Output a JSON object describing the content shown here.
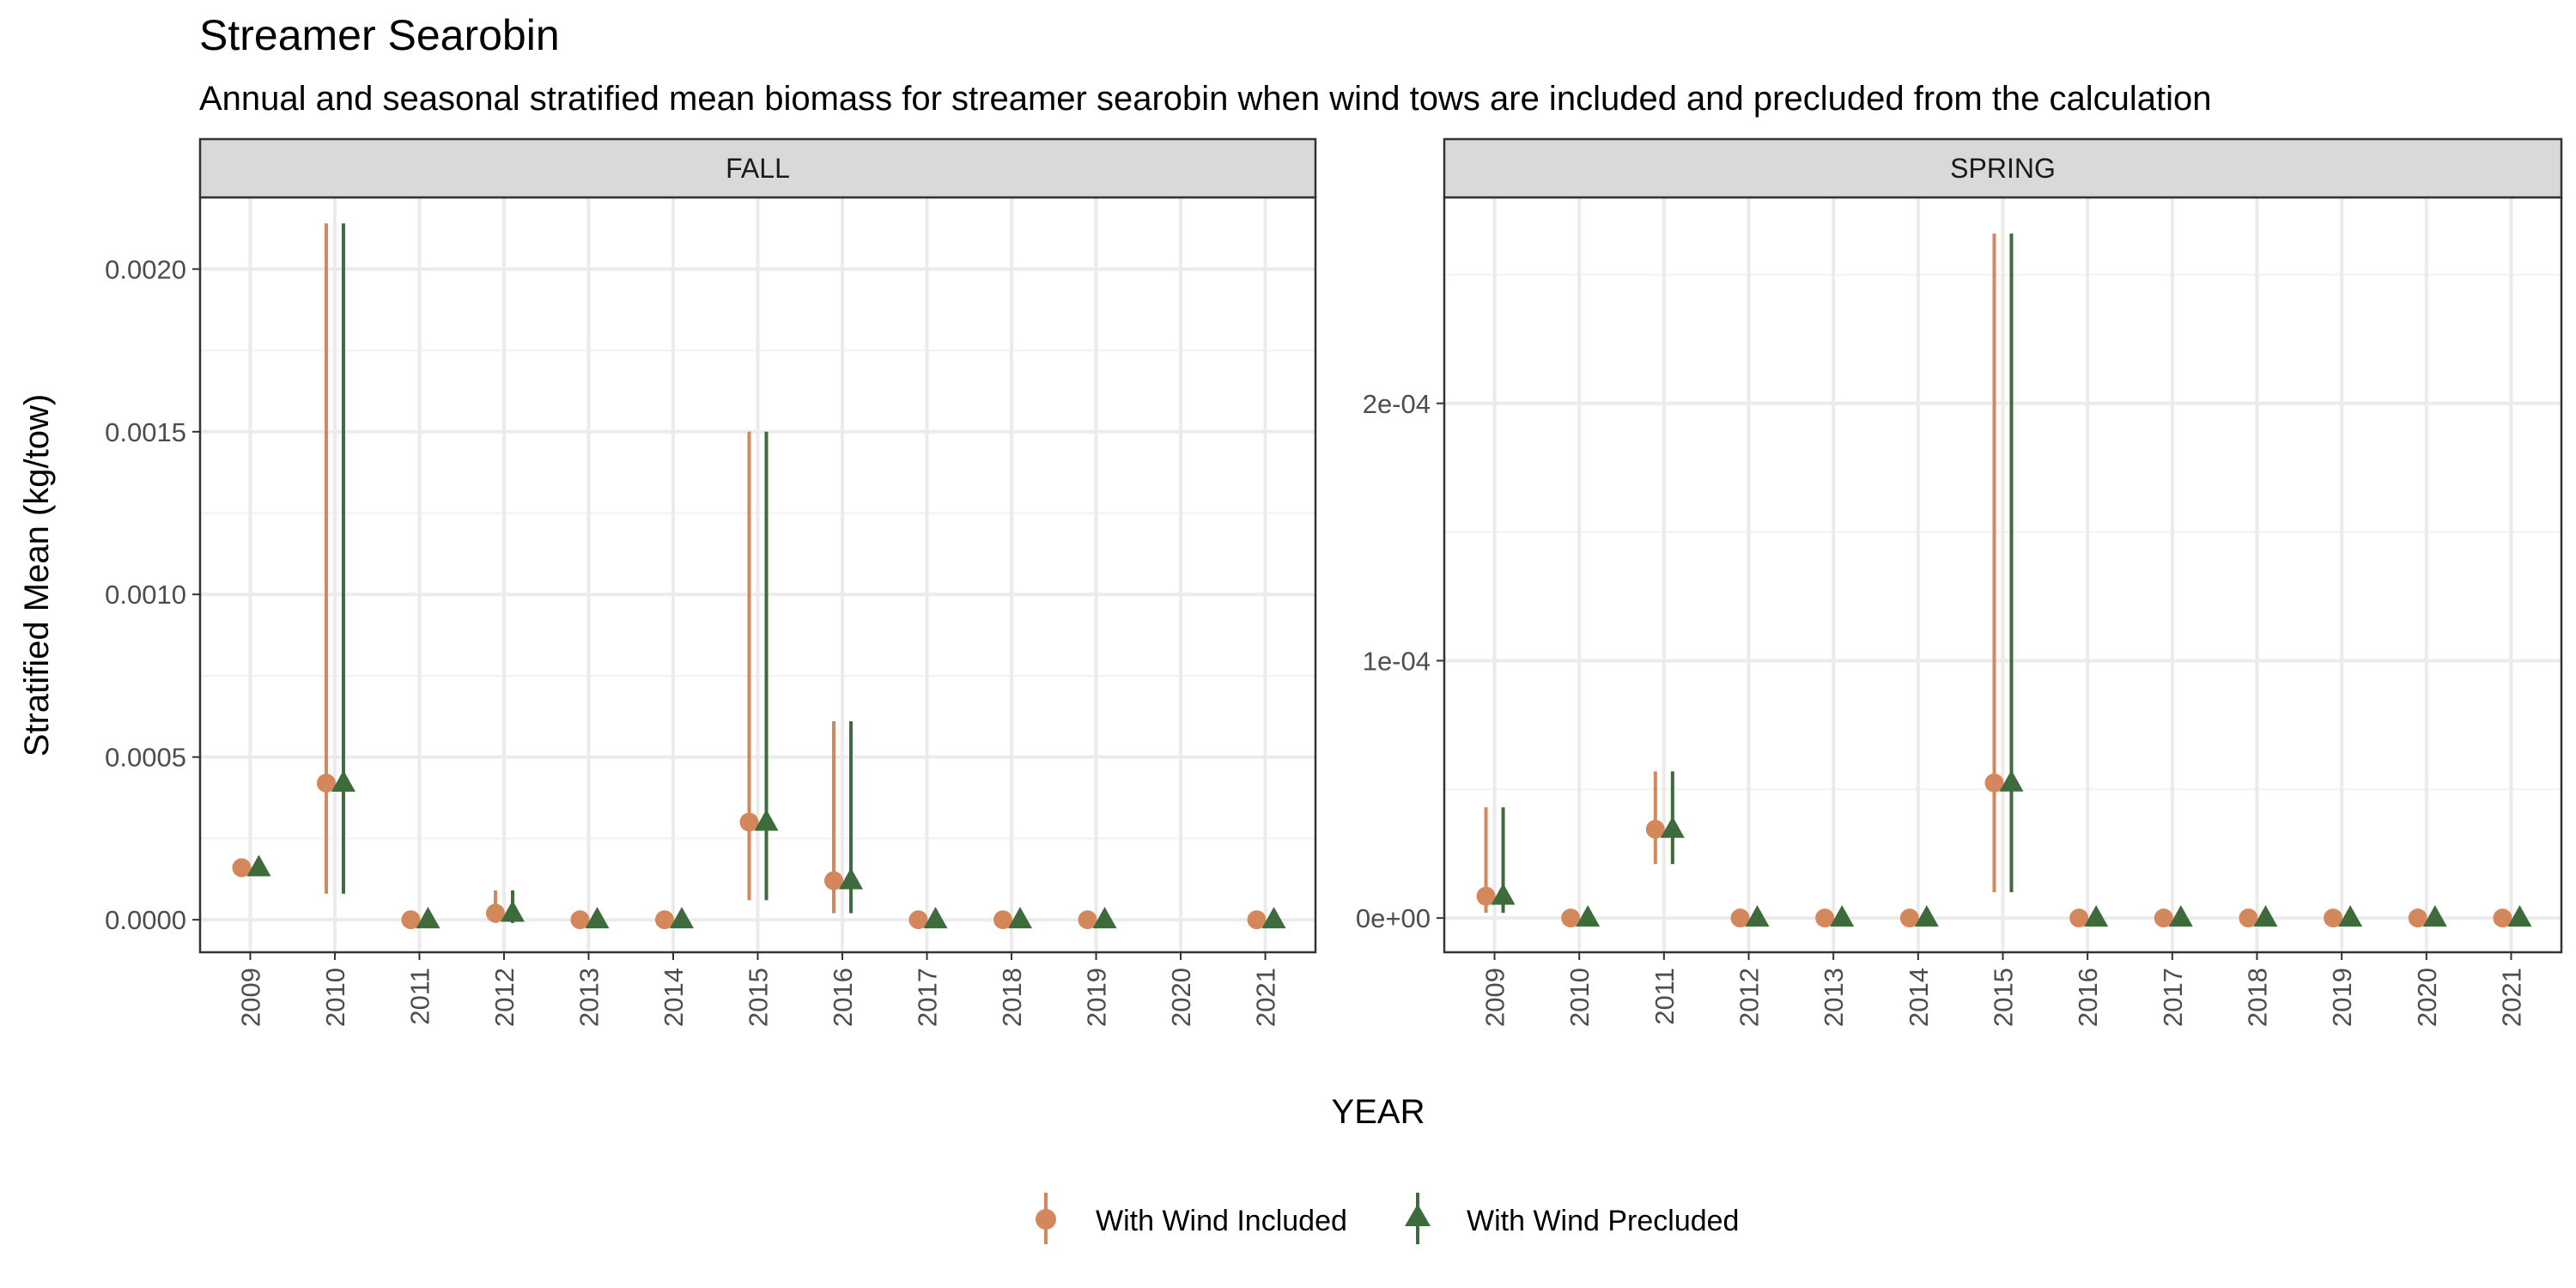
{
  "title": "Streamer Searobin",
  "subtitle": "Annual and seasonal stratified mean biomass for streamer searobin when wind tows are included and precluded from the calculation",
  "xlabel": "YEAR",
  "ylabel": "Stratified Mean (kg/tow)",
  "legend": {
    "placement": "bottom",
    "items": [
      {
        "label": "With Wind Included",
        "color": "#D4875A",
        "shape": "circle"
      },
      {
        "label": "With Wind Precluded",
        "color": "#3D6B3C",
        "shape": "triangle"
      }
    ]
  },
  "chart_data": [
    {
      "type": "scatter",
      "panel": "FALL",
      "categories": [
        "2009",
        "2010",
        "2011",
        "2012",
        "2013",
        "2014",
        "2015",
        "2016",
        "2017",
        "2018",
        "2019",
        "2020",
        "2021"
      ],
      "ylim": [
        -0.0001,
        0.00222
      ],
      "yticks": [
        0,
        0.0005,
        0.001,
        0.0015,
        0.002
      ],
      "ytick_labels": [
        "0.0000",
        "0.0005",
        "0.0010",
        "0.0015",
        "0.0020"
      ],
      "grid": true,
      "series": [
        {
          "name": "With Wind Included",
          "values": [
            0.00016,
            0.00042,
            0.0,
            2e-05,
            0.0,
            0.0,
            0.0003,
            0.00012,
            0.0,
            0.0,
            0.0,
            null,
            0.0
          ],
          "lower": [
            0.00016,
            8e-05,
            0.0,
            -1e-05,
            0.0,
            0.0,
            6e-05,
            2e-05,
            0.0,
            0.0,
            0.0,
            null,
            0.0
          ],
          "upper": [
            0.00016,
            0.00214,
            0.0,
            9e-05,
            0.0,
            0.0,
            0.0015,
            0.00061,
            0.0,
            0.0,
            0.0,
            null,
            0.0
          ]
        },
        {
          "name": "With Wind Precluded",
          "values": [
            0.00016,
            0.00042,
            0.0,
            2e-05,
            0.0,
            0.0,
            0.0003,
            0.00012,
            0.0,
            0.0,
            0.0,
            null,
            0.0
          ],
          "lower": [
            0.00016,
            8e-05,
            0.0,
            -1e-05,
            0.0,
            0.0,
            6e-05,
            2e-05,
            0.0,
            0.0,
            0.0,
            null,
            0.0
          ],
          "upper": [
            0.00016,
            0.00214,
            0.0,
            9e-05,
            0.0,
            0.0,
            0.0015,
            0.00061,
            0.0,
            0.0,
            0.0,
            null,
            0.0
          ]
        }
      ]
    },
    {
      "type": "scatter",
      "panel": "SPRING",
      "categories": [
        "2009",
        "2010",
        "2011",
        "2012",
        "2013",
        "2014",
        "2015",
        "2016",
        "2017",
        "2018",
        "2019",
        "2020",
        "2021"
      ],
      "ylim": [
        -1.33e-05,
        0.00028
      ],
      "yticks": [
        0,
        0.0001,
        0.0002
      ],
      "ytick_labels": [
        "0e+00",
        "1e-04",
        "2e-04"
      ],
      "grid": true,
      "series": [
        {
          "name": "With Wind Included",
          "values": [
            8.5e-06,
            0.0,
            3.45e-05,
            0.0,
            0.0,
            0.0,
            5.25e-05,
            0.0,
            0.0,
            0.0,
            0.0,
            0.0,
            0.0
          ],
          "lower": [
            2e-06,
            0.0,
            2.1e-05,
            0.0,
            0.0,
            0.0,
            1e-05,
            0.0,
            0.0,
            0.0,
            0.0,
            0.0,
            0.0
          ],
          "upper": [
            4.3e-05,
            0.0,
            5.7e-05,
            0.0,
            0.0,
            0.0,
            0.000266,
            0.0,
            0.0,
            0.0,
            0.0,
            0.0,
            0.0
          ]
        },
        {
          "name": "With Wind Precluded",
          "values": [
            8.5e-06,
            0.0,
            3.45e-05,
            0.0,
            0.0,
            0.0,
            5.25e-05,
            0.0,
            0.0,
            0.0,
            0.0,
            0.0,
            0.0
          ],
          "lower": [
            2e-06,
            0.0,
            2.1e-05,
            0.0,
            0.0,
            0.0,
            1e-05,
            0.0,
            0.0,
            0.0,
            0.0,
            0.0,
            0.0
          ],
          "upper": [
            4.3e-05,
            0.0,
            5.7e-05,
            0.0,
            0.0,
            0.0,
            0.000266,
            0.0,
            0.0,
            0.0,
            0.0,
            0.0,
            0.0
          ]
        }
      ]
    }
  ]
}
